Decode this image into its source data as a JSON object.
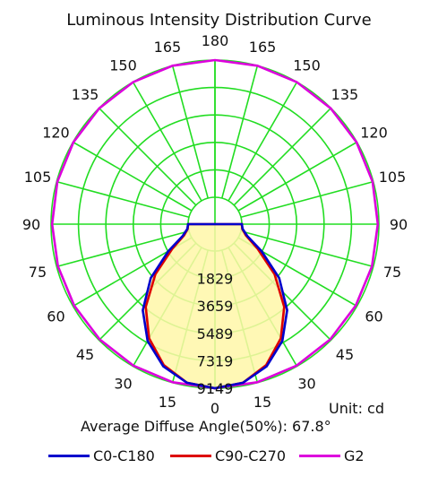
{
  "title": "Luminous Intensity Distribution Curve",
  "unit_text": "Unit: cd",
  "diffuse_text": "Average Diffuse Angle(50%): 67.8°",
  "colors": {
    "grid": "#22dd22",
    "highlight_fill": "#fff7a8",
    "c0_c180": "#0000cc",
    "c90_c270": "#dd0000",
    "g2": "#dd00dd"
  },
  "chart_data": {
    "type": "polar",
    "title": "Luminous Intensity Distribution Curve",
    "unit": "cd",
    "radial_ticks": [
      1829,
      3659,
      5489,
      7319,
      9149
    ],
    "radial_tick_labels": [
      "1829",
      "3659",
      "5489",
      "7319",
      "9149"
    ],
    "angle_labels_left": [
      "0",
      "15",
      "30",
      "45",
      "60",
      "75",
      "90",
      "105",
      "120",
      "135",
      "150",
      "165",
      "180"
    ],
    "angle_labels_right": [
      "15",
      "30",
      "45",
      "60",
      "75",
      "90",
      "105",
      "120",
      "135",
      "150",
      "165"
    ],
    "series": [
      {
        "name": "C0-C180",
        "color": "#0000cc",
        "points": [
          [
            0,
            9149
          ],
          [
            10,
            8950
          ],
          [
            20,
            8300
          ],
          [
            30,
            7200
          ],
          [
            40,
            5700
          ],
          [
            50,
            3800
          ],
          [
            60,
            1800
          ],
          [
            70,
            500
          ],
          [
            80,
            80
          ],
          [
            90,
            0
          ]
        ]
      },
      {
        "name": "C90-C270",
        "color": "#dd0000",
        "points": [
          [
            0,
            9149
          ],
          [
            10,
            8950
          ],
          [
            20,
            8200
          ],
          [
            30,
            7000
          ],
          [
            40,
            5400
          ],
          [
            50,
            3400
          ],
          [
            60,
            1500
          ],
          [
            70,
            400
          ],
          [
            80,
            60
          ],
          [
            90,
            0
          ]
        ]
      },
      {
        "name": "G2",
        "color": "#dd00dd",
        "points": [
          [
            0,
            9149
          ],
          [
            15,
            9120
          ],
          [
            30,
            9100
          ],
          [
            45,
            9080
          ],
          [
            60,
            9060
          ],
          [
            75,
            9060
          ],
          [
            90,
            9080
          ],
          [
            105,
            9100
          ],
          [
            120,
            9120
          ],
          [
            135,
            9130
          ],
          [
            150,
            9140
          ],
          [
            165,
            9145
          ],
          [
            180,
            9149
          ]
        ]
      }
    ],
    "average_diffuse_angle_50pct": "67.8°"
  }
}
